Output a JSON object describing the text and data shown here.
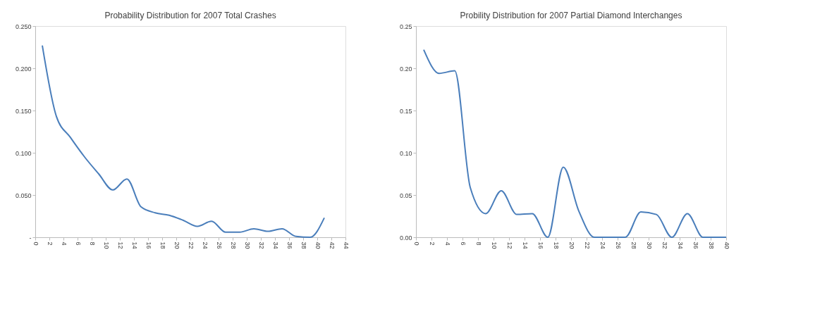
{
  "chart_data": [
    {
      "type": "line",
      "title": "Probability Distribution for  2007 Total Crashes",
      "x": [
        1,
        3,
        5,
        7,
        9,
        11,
        13,
        15,
        17,
        19,
        21,
        23,
        25,
        27,
        29,
        31,
        33,
        35,
        37,
        39,
        41
      ],
      "series": [
        {
          "color": "#4a7ebb",
          "values": [
            0.227,
            0.143,
            0.118,
            0.095,
            0.075,
            0.056,
            0.069,
            0.036,
            0.029,
            0.026,
            0.02,
            0.013,
            0.019,
            0.006,
            0.006,
            0.01,
            0.007,
            0.01,
            0.001,
            0.0,
            0.023
          ]
        }
      ],
      "xlim": [
        0,
        44
      ],
      "xticks": [
        0,
        2,
        4,
        6,
        8,
        10,
        12,
        14,
        16,
        18,
        20,
        22,
        24,
        26,
        28,
        30,
        32,
        34,
        36,
        38,
        40,
        42,
        44
      ],
      "ylim": [
        0,
        0.25
      ],
      "yticks": [
        {
          "value": 0,
          "label": "-"
        },
        {
          "value": 0.05,
          "label": "0.050"
        },
        {
          "value": 0.1,
          "label": "0.100"
        },
        {
          "value": 0.15,
          "label": "0.150"
        },
        {
          "value": 0.2,
          "label": "0.200"
        },
        {
          "value": 0.25,
          "label": "0.250"
        }
      ],
      "grid": false,
      "marker": "none",
      "line_style": "solid"
    },
    {
      "type": "line",
      "title": "Probility Distribution  for 2007  Partial Diamond Interchanges",
      "x": [
        1,
        3,
        5,
        7,
        9,
        11,
        13,
        15,
        17,
        19,
        21,
        23,
        25,
        27,
        29,
        31,
        33,
        35,
        37,
        39,
        40
      ],
      "series": [
        {
          "color": "#4a7ebb",
          "values": [
            0.222,
            0.194,
            0.197,
            0.059,
            0.028,
            0.055,
            0.027,
            0.028,
            0.0,
            0.083,
            0.031,
            0.0,
            0.0,
            0.0,
            0.03,
            0.027,
            0.0,
            0.028,
            0.0,
            0.0,
            0.0
          ]
        }
      ],
      "xlim": [
        0,
        40
      ],
      "xticks": [
        0,
        2,
        4,
        6,
        8,
        10,
        12,
        14,
        16,
        18,
        20,
        22,
        24,
        26,
        28,
        30,
        32,
        34,
        36,
        38,
        40
      ],
      "ylim": [
        0,
        0.25
      ],
      "yticks": [
        {
          "value": 0,
          "label": "0.00"
        },
        {
          "value": 0.05,
          "label": "0.05"
        },
        {
          "value": 0.1,
          "label": "0.10"
        },
        {
          "value": 0.15,
          "label": "0.15"
        },
        {
          "value": 0.2,
          "label": "0.20"
        },
        0.25
      ],
      "grid": false,
      "marker": "none",
      "line_style": "solid"
    }
  ]
}
